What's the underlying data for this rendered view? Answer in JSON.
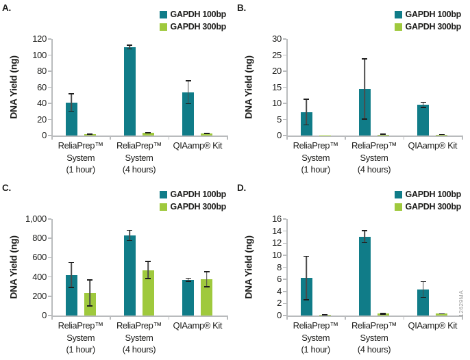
{
  "figure": {
    "watermark": "12629MA"
  },
  "chart_data": [
    {
      "type": "bar",
      "panel_label": "A.",
      "ylabel": "DNA Yield (ng)",
      "ylim": [
        0,
        120
      ],
      "ystep": 20,
      "ytick_labels": [
        "0",
        "20",
        "40",
        "60",
        "80",
        "100",
        "120"
      ],
      "categories": [
        "ReliaPrep™\nSystem\n(1 hour)",
        "ReliaPrep™\nSystem\n(4 hours)",
        "QIAamp® Kit"
      ],
      "legend_position": "top-right",
      "grid": false,
      "series": [
        {
          "name": "GAPDH 100bp",
          "color": "#107c88",
          "values": [
            41,
            110,
            54
          ],
          "errors": [
            11.5,
            3,
            15
          ]
        },
        {
          "name": "GAPDH 300bp",
          "color": "#9fc93d",
          "values": [
            1.5,
            3.5,
            2.5
          ],
          "errors": [
            0.7,
            0.7,
            0.7
          ]
        }
      ]
    },
    {
      "type": "bar",
      "panel_label": "B.",
      "ylabel": "DNA Yield (ng)",
      "ylim": [
        0,
        30
      ],
      "ystep": 5,
      "ytick_labels": [
        "0",
        "5",
        "10",
        "15",
        "20",
        "25",
        "30"
      ],
      "categories": [
        "ReliaPrep™\nSystem\n(1 hour)",
        "ReliaPrep™\nSystem\n(4 hours)",
        "QIAamp® Kit"
      ],
      "legend_position": "top-right",
      "grid": false,
      "series": [
        {
          "name": "GAPDH 100bp",
          "color": "#107c88",
          "values": [
            7.3,
            14.5,
            9.5
          ],
          "errors": [
            4.2,
            9.5,
            1
          ]
        },
        {
          "name": "GAPDH 300bp",
          "color": "#9fc93d",
          "values": [
            0.1,
            0.3,
            0.25
          ],
          "errors": [
            0,
            0.1,
            0.1
          ]
        }
      ]
    },
    {
      "type": "bar",
      "panel_label": "C.",
      "ylabel": "DNA Yield (ng)",
      "ylim": [
        0,
        1000
      ],
      "ystep": 200,
      "ytick_labels": [
        "0",
        "200",
        "400",
        "600",
        "800",
        "1,000"
      ],
      "categories": [
        "ReliaPrep™\nSystem\n(1 hour)",
        "ReliaPrep™\nSystem\n(4 hours)",
        "QIAamp® Kit"
      ],
      "legend_position": "top-right",
      "grid": false,
      "series": [
        {
          "name": "GAPDH 100bp",
          "color": "#107c88",
          "values": [
            420,
            830,
            370
          ],
          "errors": [
            135,
            60,
            22
          ]
        },
        {
          "name": "GAPDH 300bp",
          "color": "#9fc93d",
          "values": [
            235,
            470,
            375
          ],
          "errors": [
            140,
            95,
            85
          ]
        }
      ]
    },
    {
      "type": "bar",
      "panel_label": "D.",
      "ylabel": "DNA Yield (ng)",
      "ylim": [
        0,
        16
      ],
      "ystep": 2,
      "ytick_labels": [
        "0",
        "2",
        "4",
        "6",
        "8",
        "10",
        "12",
        "14",
        "16"
      ],
      "categories": [
        "ReliaPrep™\nSystem\n(1 hour)",
        "ReliaPrep™\nSystem\n(4 hours)",
        "QIAamp® Kit"
      ],
      "legend_position": "top-right",
      "grid": false,
      "series": [
        {
          "name": "GAPDH 100bp",
          "color": "#107c88",
          "values": [
            6.2,
            13.1,
            4.3
          ],
          "errors": [
            3.7,
            1.1,
            1.4
          ]
        },
        {
          "name": "GAPDH 300bp",
          "color": "#9fc93d",
          "values": [
            0.1,
            0.3,
            0.3
          ],
          "errors": [
            0.05,
            0.15,
            0.1
          ]
        }
      ]
    }
  ]
}
